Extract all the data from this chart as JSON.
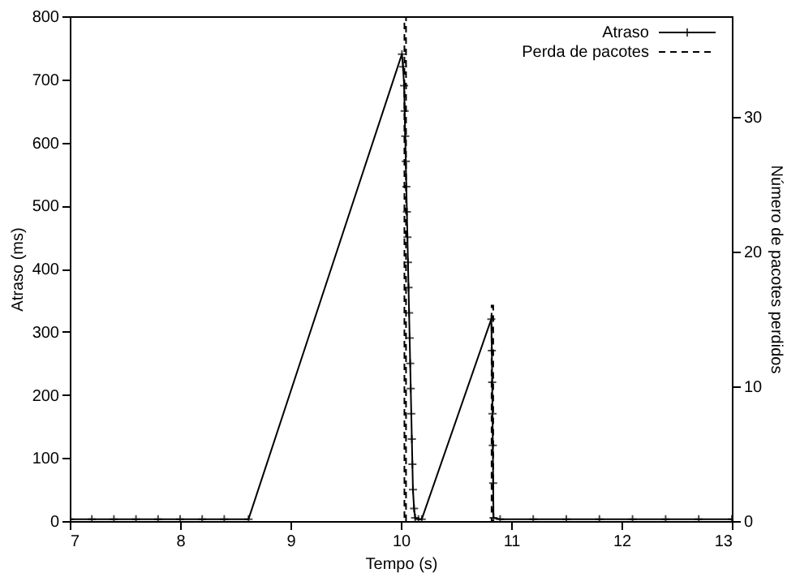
{
  "chart_data": {
    "type": "line",
    "xlabel": "Tempo (s)",
    "ylabel": "Atraso (ms)",
    "y2label": "Número de pacotes perdidos",
    "xlim": [
      7,
      13
    ],
    "xticks": [
      7,
      8,
      9,
      10,
      11,
      12,
      13
    ],
    "ylim": [
      0,
      800
    ],
    "yticks": [
      0,
      100,
      200,
      300,
      400,
      500,
      600,
      700,
      800
    ],
    "y2lim": [
      0,
      37.5
    ],
    "y2ticks": [
      0,
      10,
      20,
      30
    ],
    "grid": false,
    "legend": "top right",
    "series": [
      {
        "name": "Atraso",
        "color": "#000000",
        "marker": "cross",
        "line_style": "solid",
        "x": [
          7.0,
          7.2,
          7.4,
          7.6,
          7.8,
          8.0,
          8.2,
          8.4,
          8.62,
          10.01,
          10.02,
          10.03,
          10.035,
          10.04,
          10.045,
          10.05,
          10.055,
          10.06,
          10.065,
          10.07,
          10.075,
          10.08,
          10.085,
          10.09,
          10.095,
          10.1,
          10.105,
          10.11,
          10.12,
          10.13,
          10.16,
          10.19,
          10.82,
          10.825,
          10.828,
          10.831,
          10.834,
          10.837,
          10.84,
          10.9,
          11.2,
          11.5,
          11.8,
          12.1,
          12.4,
          12.7,
          13.0
        ],
        "values": [
          3,
          3,
          3,
          3,
          3,
          3,
          3,
          3,
          3,
          740,
          720,
          690,
          650,
          610,
          570,
          530,
          490,
          450,
          410,
          370,
          330,
          290,
          250,
          210,
          170,
          130,
          90,
          50,
          20,
          5,
          3,
          3,
          320,
          270,
          220,
          170,
          120,
          60,
          5,
          3,
          3,
          3,
          3,
          3,
          3,
          3,
          3
        ]
      },
      {
        "name": "Perda de pacotes",
        "type": "bar",
        "axis": "y2",
        "color": "#000000",
        "line_style": "dashed",
        "marker": "none",
        "x": [
          10.04,
          10.83
        ],
        "values": [
          37.5,
          16
        ]
      }
    ]
  }
}
